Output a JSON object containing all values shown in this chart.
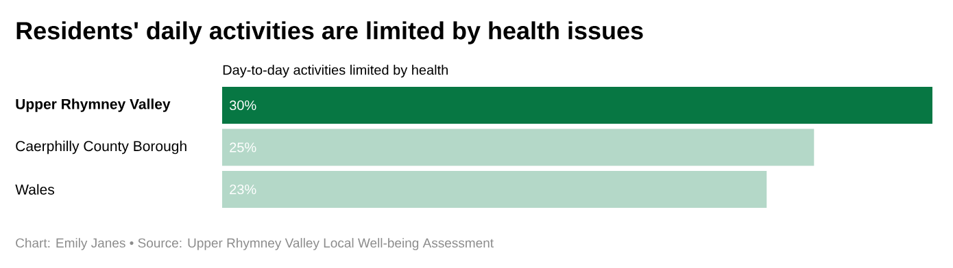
{
  "chart_data": {
    "type": "bar",
    "orientation": "horizontal",
    "title": "Residents' daily activities are limited by health issues",
    "subtitle": "Day-to-day activities limited by health",
    "categories": [
      "Upper Rhymney Valley",
      "Caerphilly County Borough",
      "Wales"
    ],
    "values": [
      30,
      25,
      23
    ],
    "value_labels": [
      "30%",
      "25%",
      "23%"
    ],
    "colors": [
      "#077743",
      "#b4d8c8",
      "#b4d8c8"
    ],
    "xlim": [
      0,
      30
    ],
    "annotations": [
      "Chart: Emily Janes • Source: Upper Rhymney Valley Local Well-being Assessment"
    ]
  }
}
